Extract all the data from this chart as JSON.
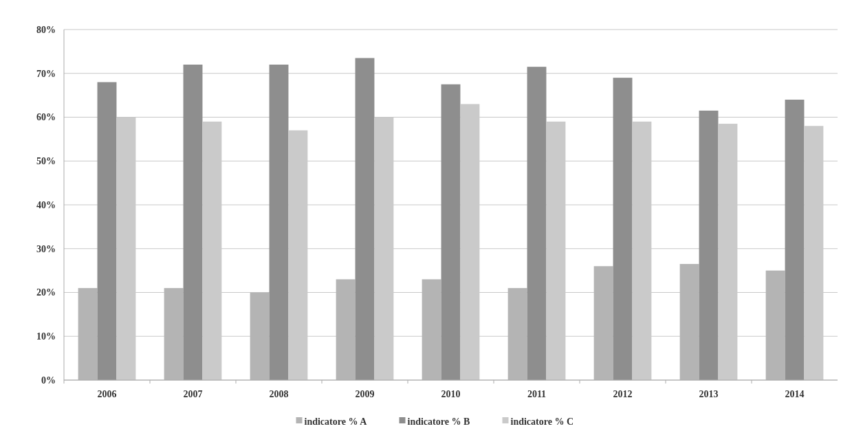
{
  "chart_data": {
    "type": "bar",
    "categories": [
      "2006",
      "2007",
      "2008",
      "2009",
      "2010",
      "2011",
      "2012",
      "2013",
      "2014"
    ],
    "series": [
      {
        "name": "indicatore % A",
        "color": "#b4b4b4",
        "values": [
          21,
          21,
          20,
          23,
          23,
          21,
          26,
          26.5,
          25
        ]
      },
      {
        "name": "indicatore % B",
        "color": "#8e8e8e",
        "values": [
          68,
          72,
          72,
          73.5,
          67.5,
          71.5,
          69,
          61.5,
          64
        ]
      },
      {
        "name": "indicatore % C",
        "color": "#cacaca",
        "values": [
          60,
          59,
          57,
          60,
          63,
          59,
          59,
          58.5,
          58
        ]
      }
    ],
    "ylim": [
      0,
      80
    ],
    "yticks": [
      {
        "value": 0,
        "label": "0%"
      },
      {
        "value": 10,
        "label": "10%"
      },
      {
        "value": 20,
        "label": "20%"
      },
      {
        "value": 30,
        "label": "30%"
      },
      {
        "value": 40,
        "label": "40%"
      },
      {
        "value": 50,
        "label": "50%"
      },
      {
        "value": 60,
        "label": "60%"
      },
      {
        "value": 70,
        "label": "70%"
      },
      {
        "value": 80,
        "label": "80%"
      }
    ],
    "grid": "y",
    "legend": "bottom"
  }
}
